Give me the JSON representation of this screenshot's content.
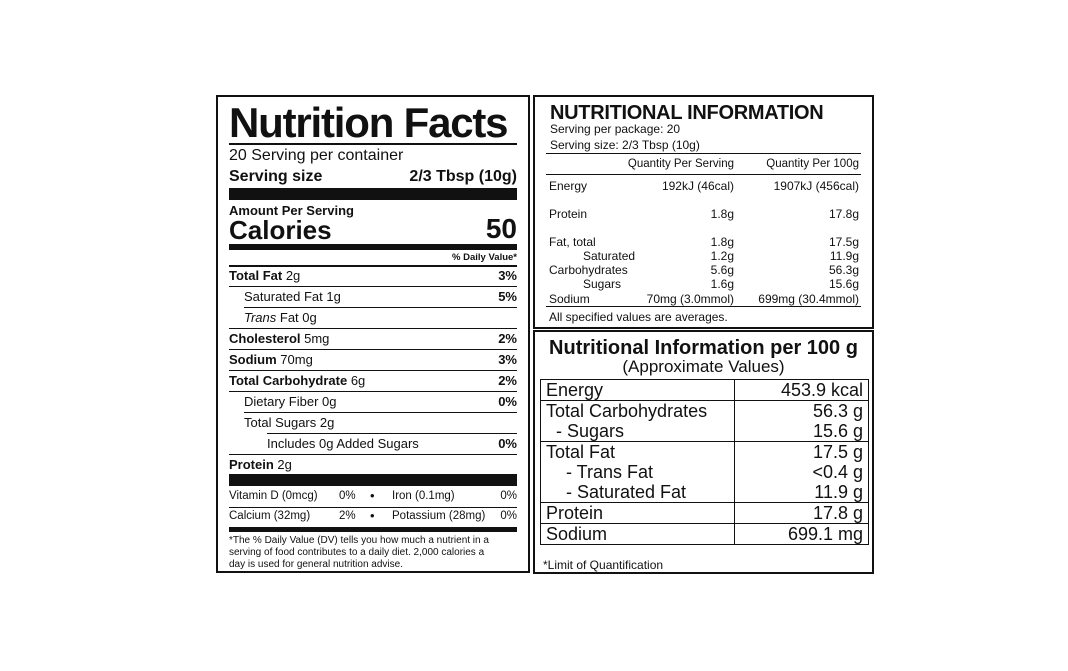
{
  "nutrition_facts": {
    "title": "Nutrition Facts",
    "servings": "20 Serving per container",
    "serving_size_label": "Serving size",
    "serving_size_value": "2/3 Tbsp (10g)",
    "amount_per_serving": "Amount Per Serving",
    "calories_label": "Calories",
    "calories_value": "50",
    "dv_header": "% Daily Value*",
    "rows": [
      {
        "name": "Total Fat",
        "amount": " 2g",
        "dv": "3%"
      },
      {
        "name": "Saturated Fat 1g",
        "dv": "5%"
      },
      {
        "name_italic": "Trans",
        "name_rest": " Fat 0g"
      },
      {
        "name": "Cholesterol",
        "amount": " 5mg",
        "dv": "2%"
      },
      {
        "name": "Sodium",
        "amount": " 70mg",
        "dv": "3%"
      },
      {
        "name": "Total Carbohydrate",
        "amount": " 6g",
        "dv": "2%"
      },
      {
        "name": "Dietary Fiber 0g",
        "dv": "0%"
      },
      {
        "name": "Total Sugars 2g"
      },
      {
        "name": "Includes 0g Added Sugars",
        "dv": "0%"
      },
      {
        "name": "Protein",
        "amount": " 2g"
      }
    ],
    "vitamins": [
      {
        "left_name": "Vitamin D (0mcg)",
        "left_dv": "0%",
        "right_name": "Iron (0.1mg)",
        "right_dv": "0%"
      },
      {
        "left_name": "Calcium (32mg)",
        "left_dv": "2%",
        "right_name": "Potassium (28mg)",
        "right_dv": "0%"
      }
    ],
    "bullet": "•",
    "footnote_lines": [
      "*The % Daily Value (DV) tells you how much a nutrient in a",
      "serving of food contributes to a daily diet. 2,000 calories a",
      "day is used for general nutrition advise."
    ]
  },
  "nutritional_information": {
    "title": "NUTRITIONAL INFORMATION",
    "servings_per_package": "Serving per package: 20",
    "serving_size": "Serving size:  2/3 Tbsp (10g)",
    "col_per_serving": "Quantity Per Serving",
    "col_per_100g": "Quantity Per 100g",
    "rows": [
      {
        "label": "Energy",
        "serving": "192kJ (46cal)",
        "per100": "1907kJ (456cal)"
      },
      {
        "label": "Protein",
        "serving": "1.8g",
        "per100": "17.8g"
      },
      {
        "label": "Fat, total",
        "serving": "1.8g",
        "per100": "17.5g"
      },
      {
        "label": "Saturated",
        "serving": "1.2g",
        "per100": "11.9g"
      },
      {
        "label": "Carbohydrates",
        "serving": "5.6g",
        "per100": "56.3g"
      },
      {
        "label": "Sugars",
        "serving": "1.6g",
        "per100": "15.6g"
      },
      {
        "label": "Sodium",
        "serving": "70mg (3.0mmol)",
        "per100": "699mg (30.4mmol)"
      }
    ],
    "footer": "All specified values are averages."
  },
  "per_100g": {
    "title": "Nutritional Information per 100 g",
    "subtitle": "(Approximate Values)",
    "rows": [
      {
        "labels": [
          "Energy"
        ],
        "values": [
          "453.9 kcal"
        ]
      },
      {
        "labels": [
          "Total Carbohydrates",
          "  - Sugars"
        ],
        "values": [
          "56.3 g",
          "15.6 g"
        ]
      },
      {
        "labels": [
          "Total Fat",
          "    - Trans Fat",
          "    - Saturated Fat"
        ],
        "values": [
          "17.5 g",
          "<0.4 g",
          "11.9 g"
        ]
      },
      {
        "labels": [
          "Protein"
        ],
        "values": [
          "17.8 g"
        ]
      },
      {
        "labels": [
          "Sodium"
        ],
        "values": [
          "699.1 mg"
        ]
      }
    ],
    "footnote": "*Limit of Quantification"
  }
}
